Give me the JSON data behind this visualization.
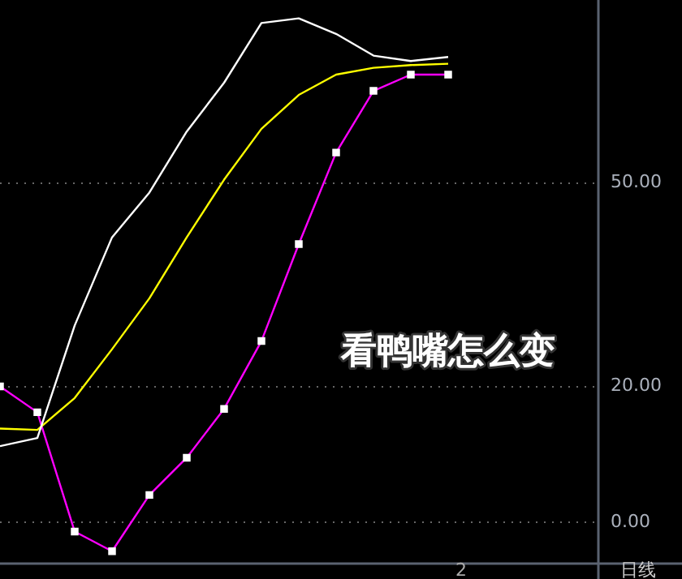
{
  "chart_data": {
    "type": "line",
    "categories": [
      null,
      null,
      null,
      null,
      null,
      null,
      null,
      null,
      null,
      null,
      null,
      null,
      null,
      null,
      null,
      null,
      null
    ],
    "series": [
      {
        "color": "#ffffff",
        "values": [
          11.2,
          12.4,
          29,
          42,
          48.6,
          57.6,
          64.8,
          73.6,
          74.3,
          72,
          68.8,
          68,
          68.6,
          null,
          null,
          null,
          null
        ]
      },
      {
        "color": "#ffff00",
        "values": [
          13.8,
          13.6,
          18.3,
          25.5,
          33,
          42,
          50.5,
          58,
          63,
          66,
          67,
          67.4,
          67.6,
          null,
          null,
          null,
          null
        ]
      },
      {
        "color": "#ff00ff",
        "marker": "square",
        "values": [
          20,
          16.2,
          -1.4,
          -4.3,
          4,
          9.5,
          16.7,
          26.7,
          41,
          54.5,
          63.6,
          66,
          66,
          null,
          null,
          null,
          null
        ]
      }
    ],
    "ylim": [
      -6,
      77
    ],
    "yticks": [
      {
        "value": 0,
        "label": "0.00"
      },
      {
        "value": 20,
        "label": "20.00"
      },
      {
        "value": 50,
        "label": "50.00"
      }
    ],
    "grid": "y",
    "legend": false,
    "tick_labels": "y",
    "marker": "none",
    "line_style": "solid",
    "annotations": [
      "看鸭嘴怎么变",
      "2",
      "日线"
    ]
  }
}
